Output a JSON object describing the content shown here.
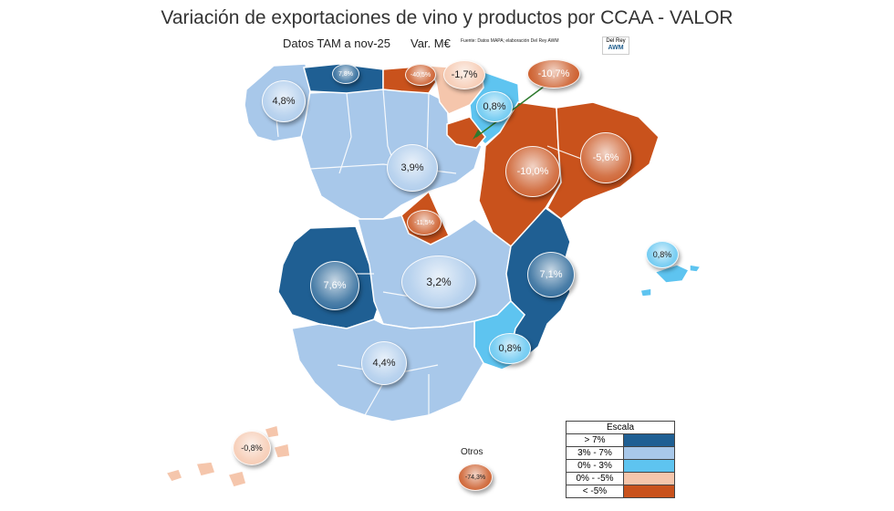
{
  "title": "Variación de exportaciones de vino y productos por CCAA - VALOR",
  "subtitle": "Datos TAM a nov-25",
  "variable": "Var. M€",
  "source": "Fuente: Datos MAPA; elaboración Del Rey AWM",
  "logo": {
    "line1": "Del Rey",
    "line2": "AWM"
  },
  "colors": {
    "gt7": "#1f5f93",
    "r3_7": "#a8c8ea",
    "r0_3": "#5ec4f0",
    "r0_m5": "#f5c6ac",
    "lt_m5": "#c9521c",
    "bubble_gradient_center": "#ffffff"
  },
  "regions": [
    {
      "name": "Galicia",
      "value": "4,8%",
      "category": "r3_7"
    },
    {
      "name": "Asturias",
      "value": "7,8%",
      "category": "gt7"
    },
    {
      "name": "Cantabria",
      "value": "-40,5%",
      "category": "lt_m5"
    },
    {
      "name": "País Vasco",
      "value": "-1,7%",
      "category": "r0_m5"
    },
    {
      "name": "Navarra",
      "value": "0,8%",
      "category": "r0_3"
    },
    {
      "name": "La Rioja",
      "value": "-10,7%",
      "category": "lt_m5"
    },
    {
      "name": "Aragón",
      "value": "-10,0%",
      "category": "lt_m5"
    },
    {
      "name": "Cataluña",
      "value": "-5,6%",
      "category": "lt_m5"
    },
    {
      "name": "Castilla y León",
      "value": "3,9%",
      "category": "r3_7"
    },
    {
      "name": "Madrid",
      "value": "-11,5%",
      "category": "lt_m5"
    },
    {
      "name": "Extremadura",
      "value": "7,6%",
      "category": "gt7"
    },
    {
      "name": "Castilla-La Mancha",
      "value": "3,2%",
      "category": "r3_7"
    },
    {
      "name": "Comunidad Valenciana",
      "value": "7,1%",
      "category": "gt7"
    },
    {
      "name": "Islas Baleares",
      "value": "0,8%",
      "category": "r0_3"
    },
    {
      "name": "Región de Murcia",
      "value": "0,8%",
      "category": "r0_3"
    },
    {
      "name": "Andalucía",
      "value": "4,4%",
      "category": "r3_7"
    },
    {
      "name": "Canarias",
      "value": "-0,8%",
      "category": "r0_m5"
    },
    {
      "name": "Otros",
      "value": "-74,3%",
      "category": "lt_m5"
    }
  ],
  "otros_label": "Otros",
  "legend": {
    "title": "Escala",
    "items": [
      {
        "label": "> 7%",
        "category": "gt7"
      },
      {
        "label": "3% - 7%",
        "category": "r3_7"
      },
      {
        "label": "0% - 3%",
        "category": "r0_3"
      },
      {
        "label": "0% - -5%",
        "category": "r0_m5"
      },
      {
        "label": "< -5%",
        "category": "lt_m5"
      }
    ]
  }
}
